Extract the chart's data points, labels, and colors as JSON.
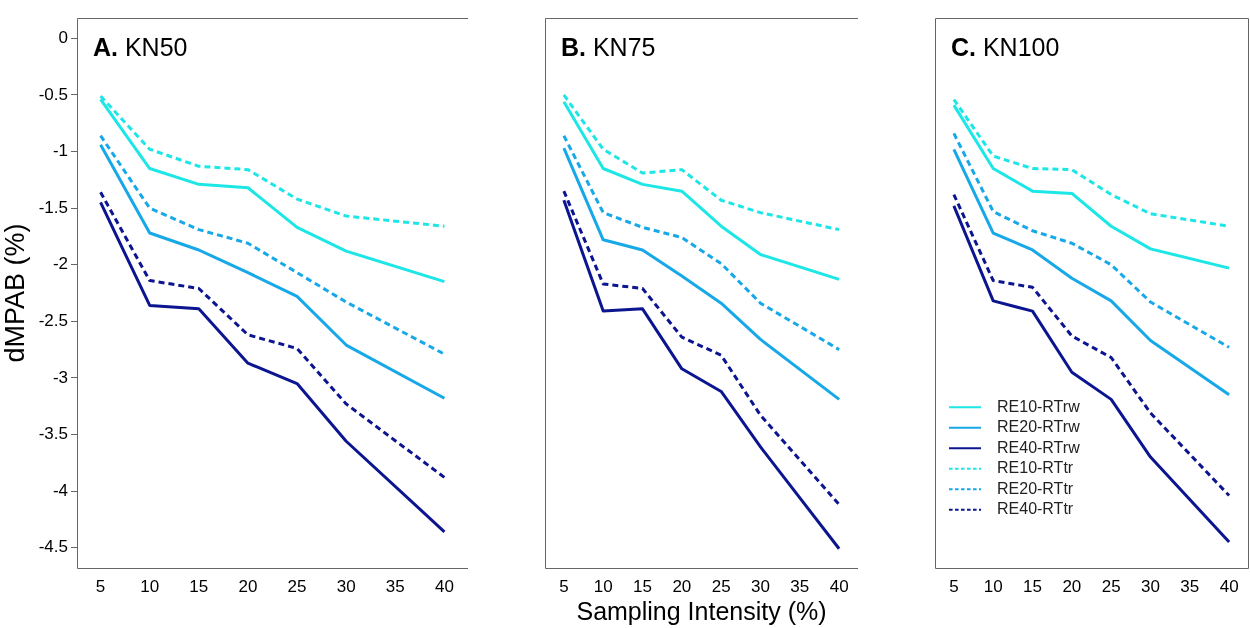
{
  "chart_data": [
    {
      "type": "line",
      "title": "A. KN50",
      "ylabel": "dMPAB (%)",
      "x": [
        5,
        10,
        15,
        20,
        25,
        30,
        40
      ],
      "xlim": [
        2.6,
        42.4
      ],
      "xticks": [
        5,
        10,
        15,
        20,
        25,
        30,
        35,
        40
      ],
      "ylim": [
        -4.68,
        0.18
      ],
      "yticks": [
        0,
        -0.5,
        -1,
        -1.5,
        -2,
        -2.5,
        -3,
        -3.5,
        -4,
        -4.5
      ],
      "grid": false,
      "marker": "none",
      "series": [
        {
          "color": "#1de6e6",
          "line_style": "solid",
          "values": [
            -0.54,
            -1.15,
            -1.29,
            -1.32,
            -1.67,
            -1.88,
            -2.15
          ]
        },
        {
          "color": "#17a8e8",
          "line_style": "solid",
          "values": [
            -0.94,
            -1.72,
            -1.87,
            -2.07,
            -2.28,
            -2.71,
            -3.18
          ]
        },
        {
          "color": "#0c1590",
          "line_style": "solid",
          "values": [
            -1.45,
            -2.36,
            -2.39,
            -2.87,
            -3.05,
            -3.56,
            -4.36
          ]
        },
        {
          "color": "#1de6e6",
          "line_style": "dashed",
          "values": [
            -0.51,
            -0.98,
            -1.13,
            -1.16,
            -1.42,
            -1.57,
            -1.66
          ]
        },
        {
          "color": "#17a8e8",
          "line_style": "dashed",
          "values": [
            -0.86,
            -1.5,
            -1.69,
            -1.81,
            -2.07,
            -2.33,
            -2.79
          ]
        },
        {
          "color": "#0c1590",
          "line_style": "dashed",
          "values": [
            -1.36,
            -2.14,
            -2.21,
            -2.62,
            -2.74,
            -3.23,
            -3.88
          ]
        }
      ]
    },
    {
      "type": "line",
      "title": "B. KN75",
      "xlabel": "Sampling Intensity (%)",
      "tick_labels": "x",
      "x": [
        5,
        10,
        15,
        20,
        25,
        30,
        40
      ],
      "xlim": [
        2.6,
        42.4
      ],
      "xticks": [
        5,
        10,
        15,
        20,
        25,
        30,
        35,
        40
      ],
      "ylim": [
        -4.68,
        0.18
      ],
      "yticks": [
        0,
        -0.5,
        -1,
        -1.5,
        -2,
        -2.5,
        -3,
        -3.5,
        -4,
        -4.5
      ],
      "grid": false,
      "marker": "none",
      "series": [
        {
          "color": "#1de6e6",
          "line_style": "solid",
          "values": [
            -0.56,
            -1.15,
            -1.29,
            -1.35,
            -1.66,
            -1.91,
            -2.13
          ]
        },
        {
          "color": "#17a8e8",
          "line_style": "solid",
          "values": [
            -0.97,
            -1.78,
            -1.87,
            -2.1,
            -2.34,
            -2.66,
            -3.19
          ]
        },
        {
          "color": "#0c1590",
          "line_style": "solid",
          "values": [
            -1.43,
            -2.41,
            -2.39,
            -2.92,
            -3.12,
            -3.61,
            -4.51
          ]
        },
        {
          "color": "#1de6e6",
          "line_style": "dashed",
          "values": [
            -0.5,
            -0.98,
            -1.19,
            -1.16,
            -1.43,
            -1.54,
            -1.69
          ]
        },
        {
          "color": "#17a8e8",
          "line_style": "dashed",
          "values": [
            -0.86,
            -1.54,
            -1.67,
            -1.76,
            -1.99,
            -2.34,
            -2.75
          ]
        },
        {
          "color": "#0c1590",
          "line_style": "dashed",
          "values": [
            -1.35,
            -2.17,
            -2.21,
            -2.64,
            -2.8,
            -3.33,
            -4.12
          ]
        }
      ]
    },
    {
      "type": "line",
      "title": "C. KN100",
      "tick_labels": "x",
      "legend": "bottom left",
      "x": [
        5,
        10,
        15,
        20,
        25,
        30,
        40
      ],
      "xlim": [
        2.6,
        42.4
      ],
      "xticks": [
        5,
        10,
        15,
        20,
        25,
        30,
        35,
        40
      ],
      "ylim": [
        -4.68,
        0.18
      ],
      "yticks": [
        0,
        -0.5,
        -1,
        -1.5,
        -2,
        -2.5,
        -3,
        -3.5,
        -4,
        -4.5
      ],
      "grid": false,
      "marker": "none",
      "series": [
        {
          "name": "RE10-RTrw",
          "color": "#1de6e6",
          "line_style": "solid",
          "values": [
            -0.59,
            -1.15,
            -1.35,
            -1.37,
            -1.66,
            -1.86,
            -2.03
          ]
        },
        {
          "name": "RE20-RTrw",
          "color": "#17a8e8",
          "line_style": "solid",
          "values": [
            -0.98,
            -1.72,
            -1.87,
            -2.12,
            -2.32,
            -2.67,
            -3.15
          ]
        },
        {
          "name": "RE40-RTrw",
          "color": "#0c1590",
          "line_style": "solid",
          "values": [
            -1.48,
            -2.32,
            -2.41,
            -2.95,
            -3.19,
            -3.7,
            -4.45
          ]
        },
        {
          "name": "RE10-RTtr",
          "color": "#1de6e6",
          "line_style": "dashed",
          "values": [
            -0.54,
            -1.04,
            -1.15,
            -1.16,
            -1.38,
            -1.55,
            -1.66
          ]
        },
        {
          "name": "RE20-RTtr",
          "color": "#17a8e8",
          "line_style": "dashed",
          "values": [
            -0.84,
            -1.53,
            -1.7,
            -1.81,
            -2,
            -2.33,
            -2.73
          ]
        },
        {
          "name": "RE40-RTtr",
          "color": "#0c1590",
          "line_style": "dashed",
          "values": [
            -1.38,
            -2.14,
            -2.2,
            -2.63,
            -2.82,
            -3.31,
            -4.04
          ]
        }
      ]
    }
  ]
}
